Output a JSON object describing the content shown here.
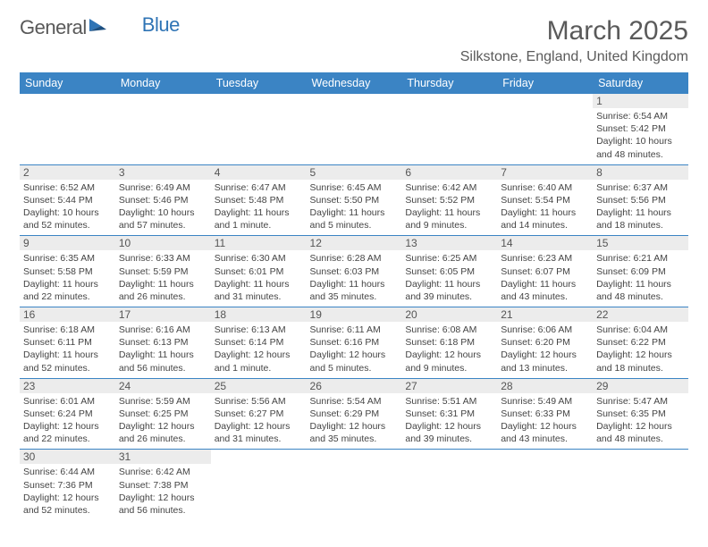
{
  "logo": {
    "general": "General",
    "blue": "Blue"
  },
  "title": "March 2025",
  "location": "Silkstone, England, United Kingdom",
  "colors": {
    "header_bg": "#3b84c4",
    "header_text": "#ffffff",
    "cell_border": "#3b84c4",
    "daynum_bg": "#ececec",
    "text": "#333333",
    "logo_gray": "#595959",
    "logo_blue": "#2f74b5"
  },
  "weekdays": [
    "Sunday",
    "Monday",
    "Tuesday",
    "Wednesday",
    "Thursday",
    "Friday",
    "Saturday"
  ],
  "weeks": [
    [
      {
        "n": "",
        "sr": "",
        "ss": "",
        "dl": ""
      },
      {
        "n": "",
        "sr": "",
        "ss": "",
        "dl": ""
      },
      {
        "n": "",
        "sr": "",
        "ss": "",
        "dl": ""
      },
      {
        "n": "",
        "sr": "",
        "ss": "",
        "dl": ""
      },
      {
        "n": "",
        "sr": "",
        "ss": "",
        "dl": ""
      },
      {
        "n": "",
        "sr": "",
        "ss": "",
        "dl": ""
      },
      {
        "n": "1",
        "sr": "Sunrise: 6:54 AM",
        "ss": "Sunset: 5:42 PM",
        "dl": "Daylight: 10 hours and 48 minutes."
      }
    ],
    [
      {
        "n": "2",
        "sr": "Sunrise: 6:52 AM",
        "ss": "Sunset: 5:44 PM",
        "dl": "Daylight: 10 hours and 52 minutes."
      },
      {
        "n": "3",
        "sr": "Sunrise: 6:49 AM",
        "ss": "Sunset: 5:46 PM",
        "dl": "Daylight: 10 hours and 57 minutes."
      },
      {
        "n": "4",
        "sr": "Sunrise: 6:47 AM",
        "ss": "Sunset: 5:48 PM",
        "dl": "Daylight: 11 hours and 1 minute."
      },
      {
        "n": "5",
        "sr": "Sunrise: 6:45 AM",
        "ss": "Sunset: 5:50 PM",
        "dl": "Daylight: 11 hours and 5 minutes."
      },
      {
        "n": "6",
        "sr": "Sunrise: 6:42 AM",
        "ss": "Sunset: 5:52 PM",
        "dl": "Daylight: 11 hours and 9 minutes."
      },
      {
        "n": "7",
        "sr": "Sunrise: 6:40 AM",
        "ss": "Sunset: 5:54 PM",
        "dl": "Daylight: 11 hours and 14 minutes."
      },
      {
        "n": "8",
        "sr": "Sunrise: 6:37 AM",
        "ss": "Sunset: 5:56 PM",
        "dl": "Daylight: 11 hours and 18 minutes."
      }
    ],
    [
      {
        "n": "9",
        "sr": "Sunrise: 6:35 AM",
        "ss": "Sunset: 5:58 PM",
        "dl": "Daylight: 11 hours and 22 minutes."
      },
      {
        "n": "10",
        "sr": "Sunrise: 6:33 AM",
        "ss": "Sunset: 5:59 PM",
        "dl": "Daylight: 11 hours and 26 minutes."
      },
      {
        "n": "11",
        "sr": "Sunrise: 6:30 AM",
        "ss": "Sunset: 6:01 PM",
        "dl": "Daylight: 11 hours and 31 minutes."
      },
      {
        "n": "12",
        "sr": "Sunrise: 6:28 AM",
        "ss": "Sunset: 6:03 PM",
        "dl": "Daylight: 11 hours and 35 minutes."
      },
      {
        "n": "13",
        "sr": "Sunrise: 6:25 AM",
        "ss": "Sunset: 6:05 PM",
        "dl": "Daylight: 11 hours and 39 minutes."
      },
      {
        "n": "14",
        "sr": "Sunrise: 6:23 AM",
        "ss": "Sunset: 6:07 PM",
        "dl": "Daylight: 11 hours and 43 minutes."
      },
      {
        "n": "15",
        "sr": "Sunrise: 6:21 AM",
        "ss": "Sunset: 6:09 PM",
        "dl": "Daylight: 11 hours and 48 minutes."
      }
    ],
    [
      {
        "n": "16",
        "sr": "Sunrise: 6:18 AM",
        "ss": "Sunset: 6:11 PM",
        "dl": "Daylight: 11 hours and 52 minutes."
      },
      {
        "n": "17",
        "sr": "Sunrise: 6:16 AM",
        "ss": "Sunset: 6:13 PM",
        "dl": "Daylight: 11 hours and 56 minutes."
      },
      {
        "n": "18",
        "sr": "Sunrise: 6:13 AM",
        "ss": "Sunset: 6:14 PM",
        "dl": "Daylight: 12 hours and 1 minute."
      },
      {
        "n": "19",
        "sr": "Sunrise: 6:11 AM",
        "ss": "Sunset: 6:16 PM",
        "dl": "Daylight: 12 hours and 5 minutes."
      },
      {
        "n": "20",
        "sr": "Sunrise: 6:08 AM",
        "ss": "Sunset: 6:18 PM",
        "dl": "Daylight: 12 hours and 9 minutes."
      },
      {
        "n": "21",
        "sr": "Sunrise: 6:06 AM",
        "ss": "Sunset: 6:20 PM",
        "dl": "Daylight: 12 hours and 13 minutes."
      },
      {
        "n": "22",
        "sr": "Sunrise: 6:04 AM",
        "ss": "Sunset: 6:22 PM",
        "dl": "Daylight: 12 hours and 18 minutes."
      }
    ],
    [
      {
        "n": "23",
        "sr": "Sunrise: 6:01 AM",
        "ss": "Sunset: 6:24 PM",
        "dl": "Daylight: 12 hours and 22 minutes."
      },
      {
        "n": "24",
        "sr": "Sunrise: 5:59 AM",
        "ss": "Sunset: 6:25 PM",
        "dl": "Daylight: 12 hours and 26 minutes."
      },
      {
        "n": "25",
        "sr": "Sunrise: 5:56 AM",
        "ss": "Sunset: 6:27 PM",
        "dl": "Daylight: 12 hours and 31 minutes."
      },
      {
        "n": "26",
        "sr": "Sunrise: 5:54 AM",
        "ss": "Sunset: 6:29 PM",
        "dl": "Daylight: 12 hours and 35 minutes."
      },
      {
        "n": "27",
        "sr": "Sunrise: 5:51 AM",
        "ss": "Sunset: 6:31 PM",
        "dl": "Daylight: 12 hours and 39 minutes."
      },
      {
        "n": "28",
        "sr": "Sunrise: 5:49 AM",
        "ss": "Sunset: 6:33 PM",
        "dl": "Daylight: 12 hours and 43 minutes."
      },
      {
        "n": "29",
        "sr": "Sunrise: 5:47 AM",
        "ss": "Sunset: 6:35 PM",
        "dl": "Daylight: 12 hours and 48 minutes."
      }
    ],
    [
      {
        "n": "30",
        "sr": "Sunrise: 6:44 AM",
        "ss": "Sunset: 7:36 PM",
        "dl": "Daylight: 12 hours and 52 minutes."
      },
      {
        "n": "31",
        "sr": "Sunrise: 6:42 AM",
        "ss": "Sunset: 7:38 PM",
        "dl": "Daylight: 12 hours and 56 minutes."
      },
      {
        "n": "",
        "sr": "",
        "ss": "",
        "dl": ""
      },
      {
        "n": "",
        "sr": "",
        "ss": "",
        "dl": ""
      },
      {
        "n": "",
        "sr": "",
        "ss": "",
        "dl": ""
      },
      {
        "n": "",
        "sr": "",
        "ss": "",
        "dl": ""
      },
      {
        "n": "",
        "sr": "",
        "ss": "",
        "dl": ""
      }
    ]
  ]
}
